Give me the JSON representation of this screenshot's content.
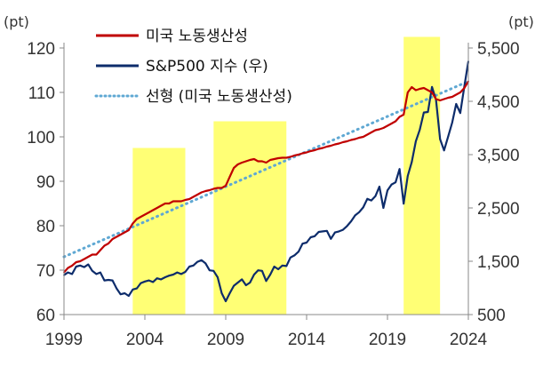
{
  "chart_data": {
    "type": "line",
    "left_unit": "(pt)",
    "right_unit": "(pt)",
    "x_range": [
      1999,
      2024
    ],
    "x_ticks": [
      "1999",
      "2004",
      "2009",
      "2014",
      "2019",
      "2024"
    ],
    "y_left_range": [
      60,
      120
    ],
    "y_left_ticks": [
      "60",
      "70",
      "80",
      "90",
      "100",
      "110",
      "120"
    ],
    "y_right_range": [
      500,
      5500
    ],
    "y_right_ticks": [
      "500",
      "1,500",
      "2,500",
      "3,500",
      "4,500",
      "5,500"
    ],
    "highlight_periods": [
      {
        "start": 2003.25,
        "end": 2006.5,
        "top": 97.5
      },
      {
        "start": 2008.25,
        "end": 2012.75,
        "top": 103.5
      },
      {
        "start": 2020.0,
        "end": 2022.25,
        "top": 122.5
      }
    ],
    "series": [
      {
        "name": "미국 노동생산성",
        "axis": "left",
        "color": "#c00000",
        "style": "solid",
        "x": [
          1999.0,
          1999.25,
          1999.5,
          1999.75,
          2000.0,
          2000.25,
          2000.5,
          2000.75,
          2001.0,
          2001.25,
          2001.5,
          2001.75,
          2002.0,
          2002.25,
          2002.5,
          2002.75,
          2003.0,
          2003.25,
          2003.5,
          2003.75,
          2004.0,
          2004.25,
          2004.5,
          2004.75,
          2005.0,
          2005.25,
          2005.5,
          2005.75,
          2006.0,
          2006.25,
          2006.5,
          2006.75,
          2007.0,
          2007.25,
          2007.5,
          2007.75,
          2008.0,
          2008.25,
          2008.5,
          2008.75,
          2009.0,
          2009.25,
          2009.5,
          2009.75,
          2010.0,
          2010.25,
          2010.5,
          2010.75,
          2011.0,
          2011.25,
          2011.5,
          2011.75,
          2012.0,
          2012.25,
          2012.5,
          2012.75,
          2013.0,
          2013.25,
          2013.5,
          2013.75,
          2014.0,
          2014.25,
          2014.5,
          2014.75,
          2015.0,
          2015.25,
          2015.5,
          2015.75,
          2016.0,
          2016.25,
          2016.5,
          2016.75,
          2017.0,
          2017.25,
          2017.5,
          2017.75,
          2018.0,
          2018.25,
          2018.5,
          2018.75,
          2019.0,
          2019.25,
          2019.5,
          2019.75,
          2020.0,
          2020.25,
          2020.5,
          2020.75,
          2021.0,
          2021.25,
          2021.5,
          2021.75,
          2022.0,
          2022.25,
          2022.5,
          2022.75,
          2023.0,
          2023.25,
          2023.5,
          2023.75,
          2024.0
        ],
        "values": [
          69.5,
          70.5,
          71.0,
          71.8,
          72.0,
          72.5,
          73.0,
          73.5,
          73.5,
          74.5,
          75.5,
          76.0,
          77.0,
          77.5,
          78.0,
          78.5,
          79.0,
          80.5,
          81.5,
          82.0,
          82.5,
          83.0,
          83.5,
          84.0,
          84.5,
          85.0,
          85.0,
          85.5,
          85.5,
          85.5,
          85.8,
          86.0,
          86.5,
          87.0,
          87.5,
          87.8,
          88.0,
          88.3,
          88.5,
          88.5,
          89.0,
          91.0,
          93.0,
          93.8,
          94.2,
          94.5,
          94.8,
          95.0,
          94.5,
          94.5,
          94.2,
          94.8,
          95.0,
          95.2,
          95.3,
          95.3,
          95.5,
          95.8,
          96.0,
          96.3,
          96.5,
          96.8,
          97.0,
          97.3,
          97.5,
          97.8,
          98.0,
          98.3,
          98.5,
          98.8,
          99.0,
          99.3,
          99.5,
          99.8,
          100.0,
          100.5,
          101.0,
          101.5,
          101.7,
          102.0,
          102.5,
          103.0,
          103.5,
          104.5,
          105.0,
          110.0,
          111.2,
          110.5,
          110.8,
          111.0,
          110.5,
          110.0,
          108.5,
          108.2,
          108.5,
          108.8,
          109.0,
          109.5,
          110.0,
          111.0,
          112.5
        ]
      },
      {
        "name": "S&P500 지수 (우)",
        "axis": "right",
        "color": "#0d2c6b",
        "style": "solid",
        "x": [
          1999.0,
          1999.25,
          1999.5,
          1999.75,
          2000.0,
          2000.25,
          2000.5,
          2000.75,
          2001.0,
          2001.25,
          2001.5,
          2001.75,
          2002.0,
          2002.25,
          2002.5,
          2002.75,
          2003.0,
          2003.25,
          2003.5,
          2003.75,
          2004.0,
          2004.25,
          2004.5,
          2004.75,
          2005.0,
          2005.25,
          2005.5,
          2005.75,
          2006.0,
          2006.25,
          2006.5,
          2006.75,
          2007.0,
          2007.25,
          2007.5,
          2007.75,
          2008.0,
          2008.25,
          2008.5,
          2008.75,
          2009.0,
          2009.25,
          2009.5,
          2009.75,
          2010.0,
          2010.25,
          2010.5,
          2010.75,
          2011.0,
          2011.25,
          2011.5,
          2011.75,
          2012.0,
          2012.25,
          2012.5,
          2012.75,
          2013.0,
          2013.25,
          2013.5,
          2013.75,
          2014.0,
          2014.25,
          2014.5,
          2014.75,
          2015.0,
          2015.25,
          2015.5,
          2015.75,
          2016.0,
          2016.25,
          2016.5,
          2016.75,
          2017.0,
          2017.25,
          2017.5,
          2017.75,
          2018.0,
          2018.25,
          2018.5,
          2018.75,
          2019.0,
          2019.25,
          2019.5,
          2019.75,
          2020.0,
          2020.25,
          2020.5,
          2020.75,
          2021.0,
          2021.25,
          2021.5,
          2021.75,
          2022.0,
          2022.25,
          2022.5,
          2022.75,
          2023.0,
          2023.25,
          2023.5,
          2023.75,
          2024.0
        ],
        "values": [
          1240,
          1290,
          1260,
          1400,
          1420,
          1390,
          1440,
          1320,
          1260,
          1290,
          1140,
          1150,
          1140,
          990,
          880,
          900,
          850,
          970,
          990,
          1090,
          1120,
          1140,
          1110,
          1180,
          1160,
          1200,
          1230,
          1250,
          1290,
          1260,
          1300,
          1400,
          1420,
          1490,
          1520,
          1460,
          1330,
          1320,
          1200,
          900,
          750,
          900,
          1040,
          1100,
          1160,
          1050,
          1100,
          1250,
          1330,
          1320,
          1130,
          1250,
          1400,
          1350,
          1420,
          1410,
          1570,
          1610,
          1680,
          1830,
          1850,
          1950,
          1970,
          2050,
          2060,
          2070,
          1920,
          2040,
          2060,
          2090,
          2160,
          2250,
          2360,
          2420,
          2510,
          2670,
          2640,
          2720,
          2900,
          2500,
          2830,
          2940,
          2980,
          3230,
          2580,
          3100,
          3360,
          3750,
          3970,
          4290,
          4300,
          4770,
          4530,
          3790,
          3580,
          3840,
          4100,
          4450,
          4280,
          4780,
          5250
        ]
      },
      {
        "name": "선형 (미국 노동생산성)",
        "axis": "left",
        "color": "#5fa8d3",
        "style": "dotted",
        "x": [
          1999,
          2024
        ],
        "values": [
          73.0,
          112.5
        ]
      }
    ]
  }
}
